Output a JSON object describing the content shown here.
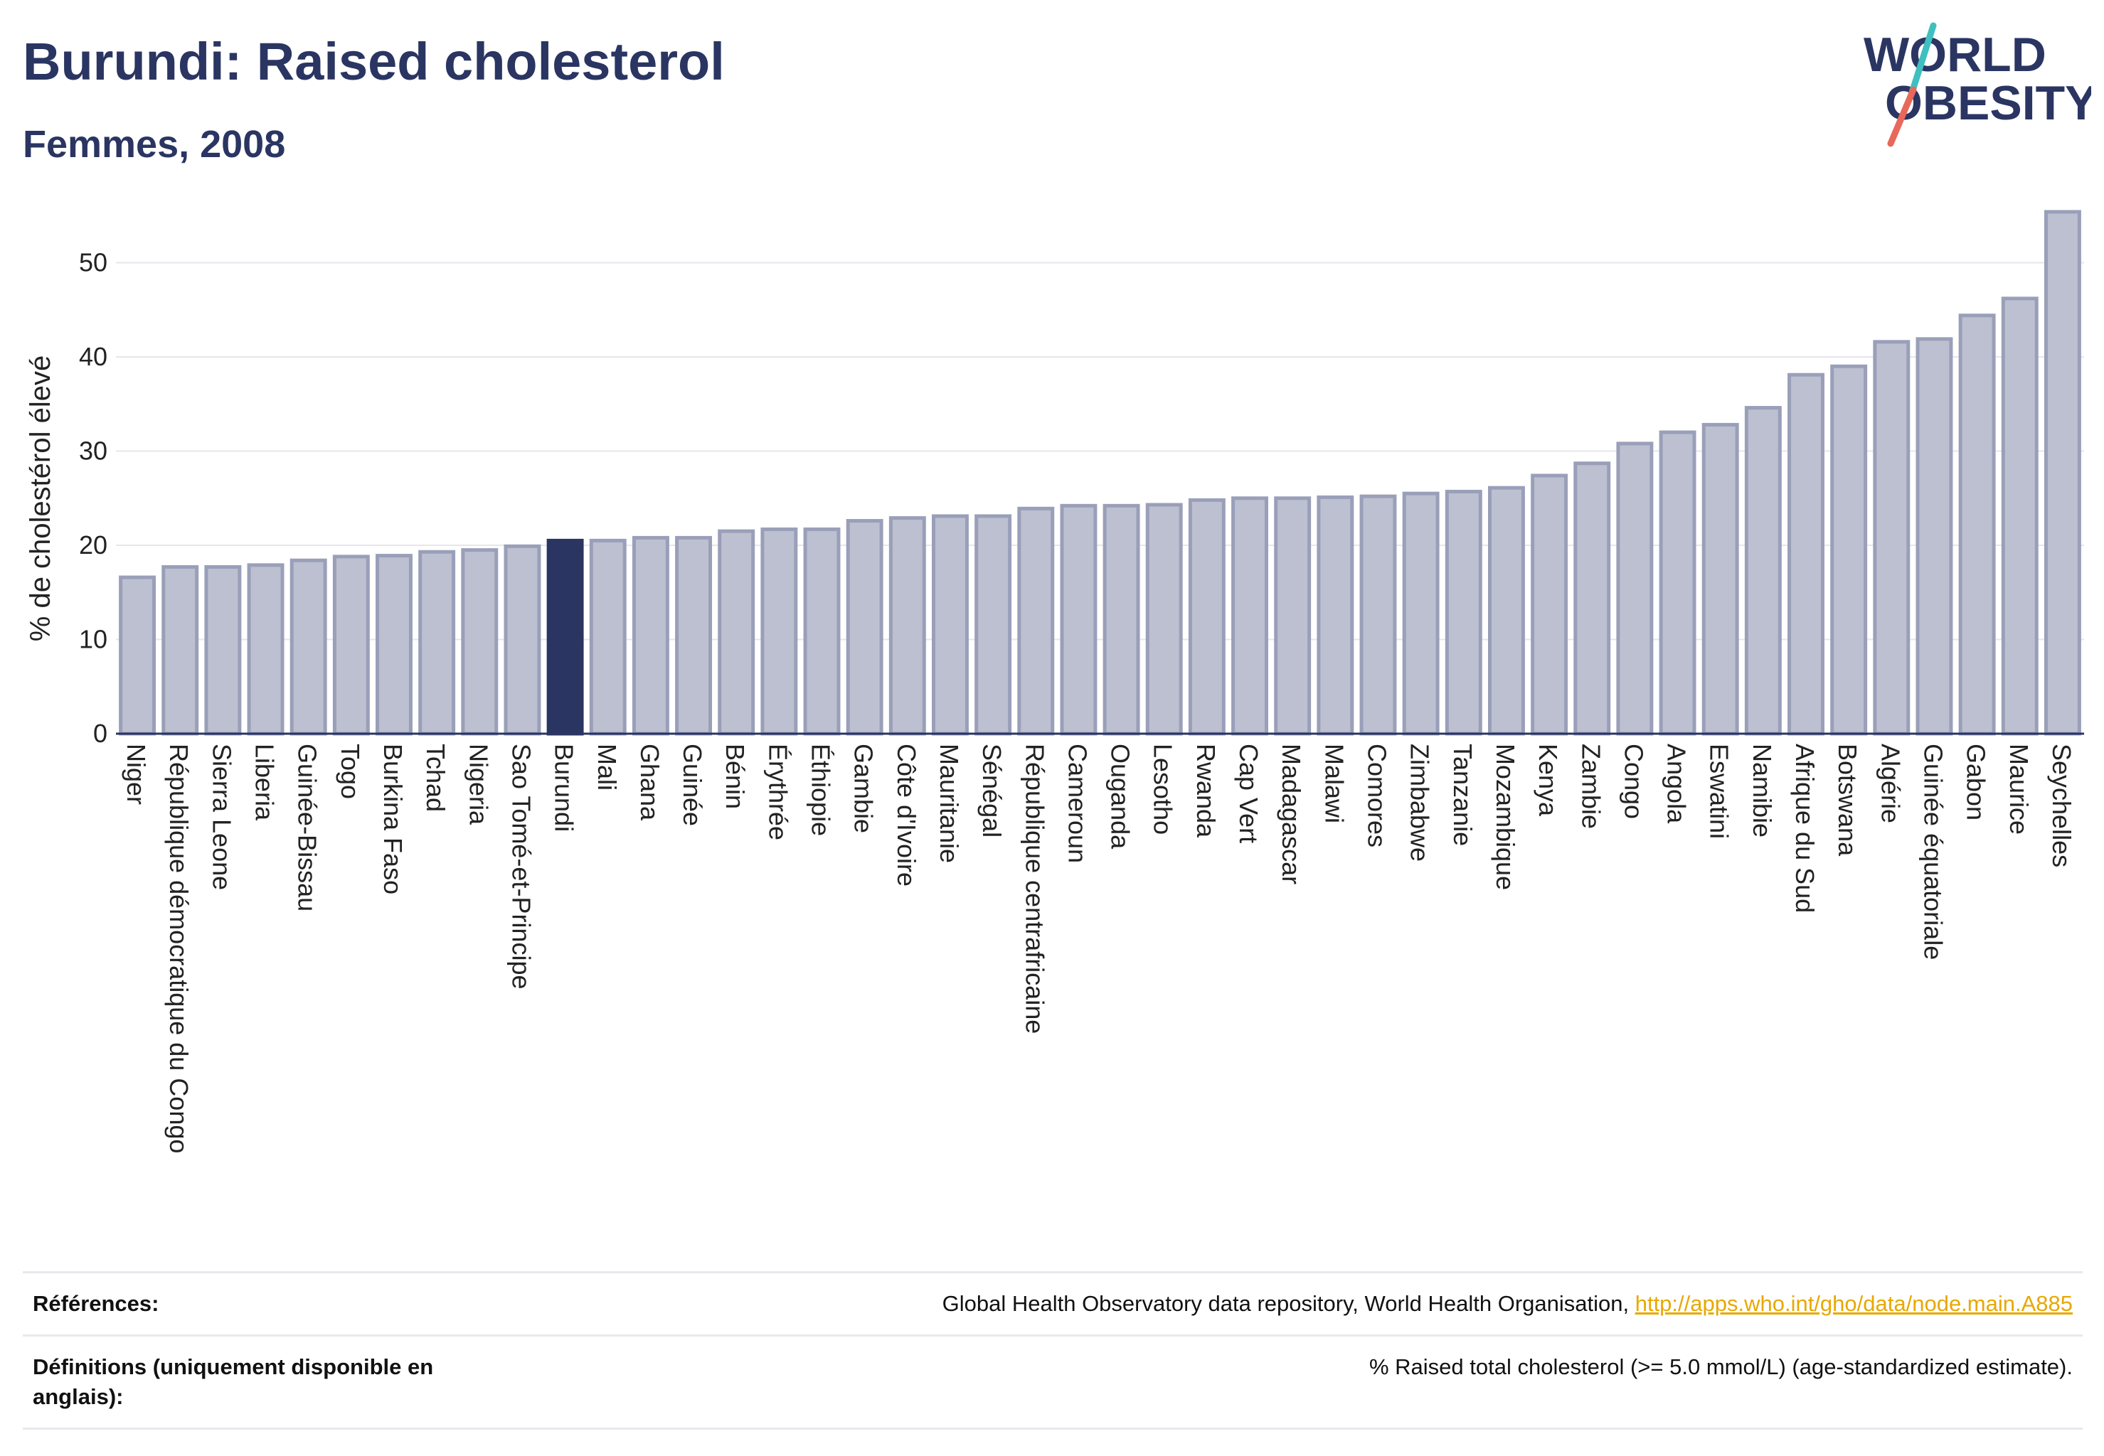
{
  "header": {
    "title": "Burundi: Raised cholesterol",
    "subtitle": "Femmes, 2008"
  },
  "logo": {
    "line1": "WORLD",
    "line2": "OBESITY",
    "slash_colors": [
      "#3fbfbf",
      "#e8685a"
    ],
    "text_color": "#2a3562"
  },
  "colors": {
    "highlight": "#2a3562",
    "bar_fill": "#bcc0d0",
    "bar_stroke": "#9a9fb9",
    "link": "#e8a800"
  },
  "chart_data": {
    "type": "bar",
    "title": "Burundi: Raised cholesterol",
    "subtitle": "Femmes, 2008",
    "ylabel": "% de cholestérol élevé",
    "xlabel": "",
    "ylim": [
      0,
      56
    ],
    "yticks": [
      0,
      10,
      20,
      30,
      40,
      50
    ],
    "grid": true,
    "highlight": "Burundi",
    "categories": [
      "Niger",
      "République démocratique du Congo",
      "Sierra Leone",
      "Liberia",
      "Guinée-Bissau",
      "Togo",
      "Burkina Faso",
      "Tchad",
      "Nigeria",
      "Sao Tomé-et-Principe",
      "Burundi",
      "Mali",
      "Ghana",
      "Guinée",
      "Bénin",
      "Érythrée",
      "Éthiopie",
      "Gambie",
      "Côte d'Ivoire",
      "Mauritanie",
      "Sénégal",
      "République centrafricaine",
      "Cameroun",
      "Ouganda",
      "Lesotho",
      "Rwanda",
      "Cap Vert",
      "Madagascar",
      "Malawi",
      "Comores",
      "Zimbabwe",
      "Tanzanie",
      "Mozambique",
      "Kenya",
      "Zambie",
      "Congo",
      "Angola",
      "Eswatini",
      "Namibie",
      "Afrique du Sud",
      "Botswana",
      "Algérie",
      "Guinée équatoriale",
      "Gabon",
      "Maurice",
      "Seychelles"
    ],
    "values": [
      16.6,
      17.7,
      17.7,
      17.9,
      18.4,
      18.8,
      18.9,
      19.3,
      19.5,
      19.9,
      20.5,
      20.5,
      20.8,
      20.8,
      21.5,
      21.7,
      21.7,
      22.6,
      22.9,
      23.1,
      23.1,
      23.9,
      24.2,
      24.2,
      24.3,
      24.8,
      25.0,
      25.0,
      25.1,
      25.2,
      25.5,
      25.7,
      26.1,
      27.4,
      28.7,
      30.8,
      32.0,
      32.8,
      34.6,
      38.1,
      39.0,
      41.6,
      41.9,
      44.4,
      46.2,
      55.4
    ]
  },
  "footer": {
    "references_label": "Références:",
    "references_text": "Global Health Observatory data repository, World Health Organisation, ",
    "references_link": "http://apps.who.int/gho/data/node.main.A885",
    "definitions_label": "Définitions (uniquement disponible en anglais):",
    "definitions_text": "% Raised total cholesterol (>= 5.0 mmol/L) (age-standardized estimate)."
  }
}
